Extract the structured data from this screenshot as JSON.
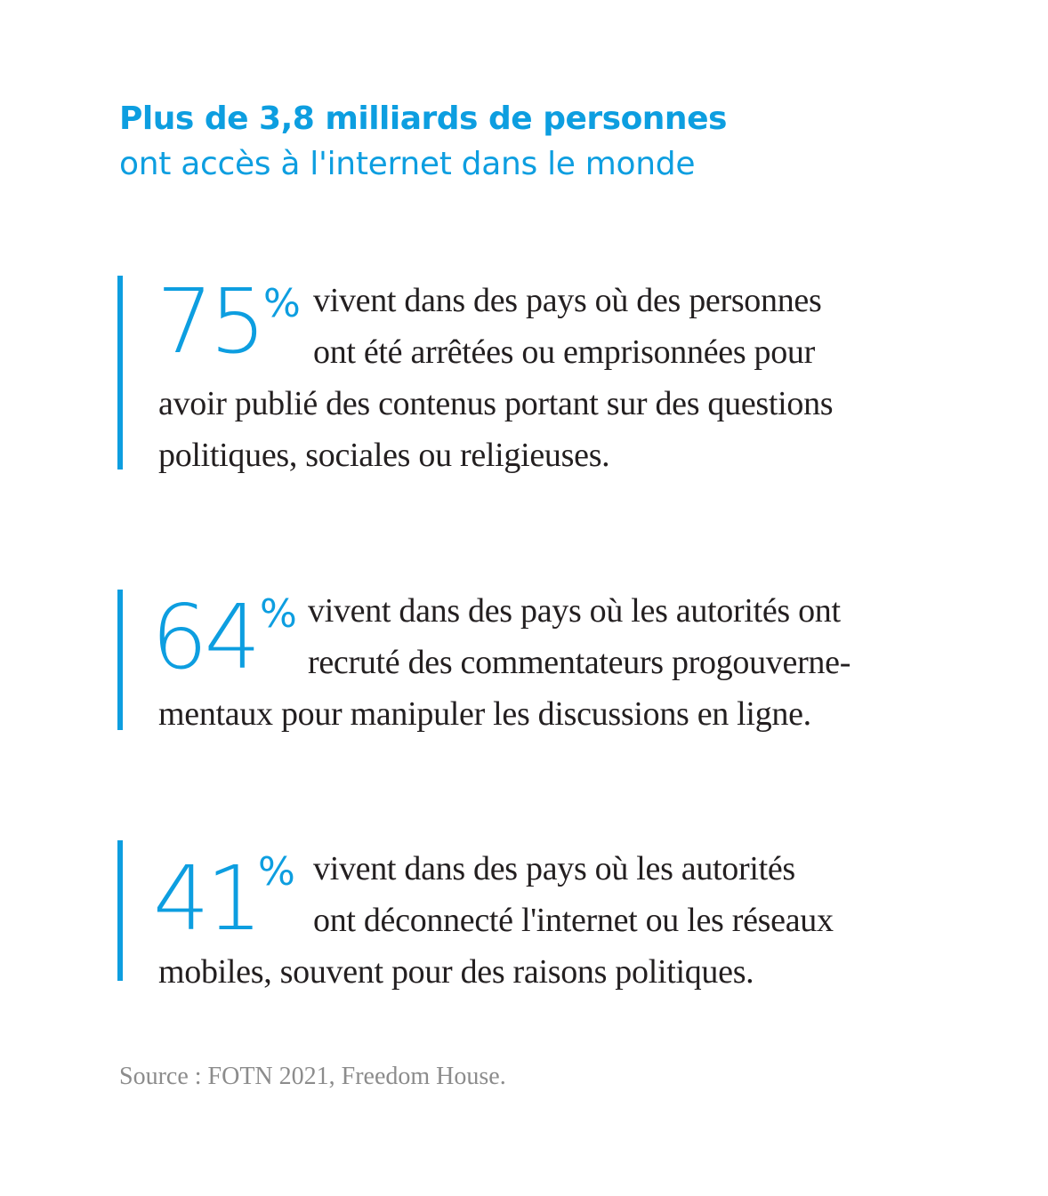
{
  "title": {
    "line1": "Plus de 3,8 milliards de personnes",
    "line2": "ont accès à l'internet dans le monde"
  },
  "stats": [
    {
      "number": "75",
      "percent_sign": "%",
      "lines": [
        "vivent dans des pays où des personnes",
        "ont été arrêtées ou emprisonnées pour",
        "avoir publié des contenus portant sur des questions",
        "politiques, sociales ou religieuses."
      ]
    },
    {
      "number": "64",
      "percent_sign": "%",
      "lines": [
        "vivent dans des pays où les autorités ont",
        "recruté des commentateurs progouverne-",
        "mentaux pour manipuler les discussions en ligne."
      ]
    },
    {
      "number": "41",
      "percent_sign": "%",
      "lines": [
        "vivent dans des pays où les autorités",
        "ont déconnecté l'internet ou les réseaux",
        "mobiles, souvent pour des raisons politiques."
      ]
    }
  ],
  "source": "Source : FOTN 2021, Freedom House.",
  "colors": {
    "accent": "#0d9ee0",
    "text": "#231f20",
    "source": "#8c8c8c"
  }
}
